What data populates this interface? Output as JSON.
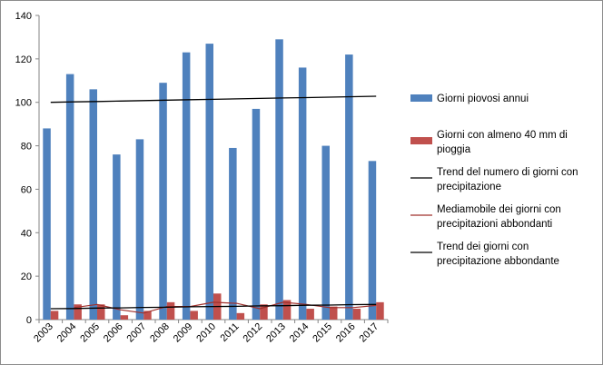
{
  "chart_data": {
    "type": "bar",
    "categories": [
      "2003",
      "2004",
      "2005",
      "2006",
      "2007",
      "2008",
      "2009",
      "2010",
      "2011",
      "2012",
      "2013",
      "2014",
      "2015",
      "2016",
      "2017"
    ],
    "series": [
      {
        "name": "Giorni piovosi annui",
        "kind": "bar",
        "color": "#4f81bd",
        "values": [
          88,
          113,
          106,
          76,
          83,
          109,
          123,
          127,
          79,
          97,
          129,
          116,
          80,
          122,
          73
        ]
      },
      {
        "name": "Giorni con almeno 40 mm di pioggia",
        "kind": "bar",
        "color": "#c0504d",
        "values": [
          4,
          7,
          7,
          2,
          4,
          8,
          4,
          12,
          3,
          7,
          9,
          5,
          6,
          5,
          8
        ]
      },
      {
        "name": "Trend del numero di giorni con precipitazione",
        "kind": "line",
        "color": "#000000",
        "values": [
          100.0,
          100.2,
          100.4,
          100.6,
          100.8,
          101.0,
          101.2,
          101.4,
          101.6,
          101.8,
          102.0,
          102.2,
          102.4,
          102.6,
          102.8
        ]
      },
      {
        "name": "Mediamobile dei giorni con precipitazioni abbondanti",
        "kind": "line",
        "color": "#a0302c",
        "values": [
          null,
          5.5,
          7,
          4.5,
          3,
          6,
          6,
          8,
          7.5,
          5,
          8,
          7,
          5.5,
          5.5,
          6.5
        ]
      },
      {
        "name": "Trend dei giorni con precipitazione abbondante",
        "kind": "line",
        "color": "#000000",
        "values": [
          5.0,
          5.1,
          5.3,
          5.4,
          5.6,
          5.7,
          5.9,
          6.0,
          6.1,
          6.3,
          6.4,
          6.6,
          6.7,
          6.9,
          7.0
        ]
      }
    ],
    "ylim": [
      0,
      140
    ],
    "yticks": [
      "0",
      "20",
      "40",
      "60",
      "80",
      "100",
      "120",
      "140"
    ],
    "legend": [
      {
        "lines": [
          "Giorni piovosi annui"
        ],
        "type": "box",
        "color": "#4f81bd"
      },
      {
        "lines": [
          "Giorni con almeno 40 mm  di",
          "pioggia"
        ],
        "type": "box",
        "color": "#c0504d"
      },
      {
        "lines": [
          "Trend del numero di giorni con",
          "precipitazione"
        ],
        "type": "line",
        "color": "#000000"
      },
      {
        "lines": [
          "Mediamobile  dei giorni con",
          "precipitazioni abbondanti"
        ],
        "type": "line",
        "color": "#a0302c"
      },
      {
        "lines": [
          "Trend dei giorni con",
          "precipitazione abbondante"
        ],
        "type": "line",
        "color": "#000000"
      }
    ],
    "legend_position": "right",
    "grid": false
  }
}
